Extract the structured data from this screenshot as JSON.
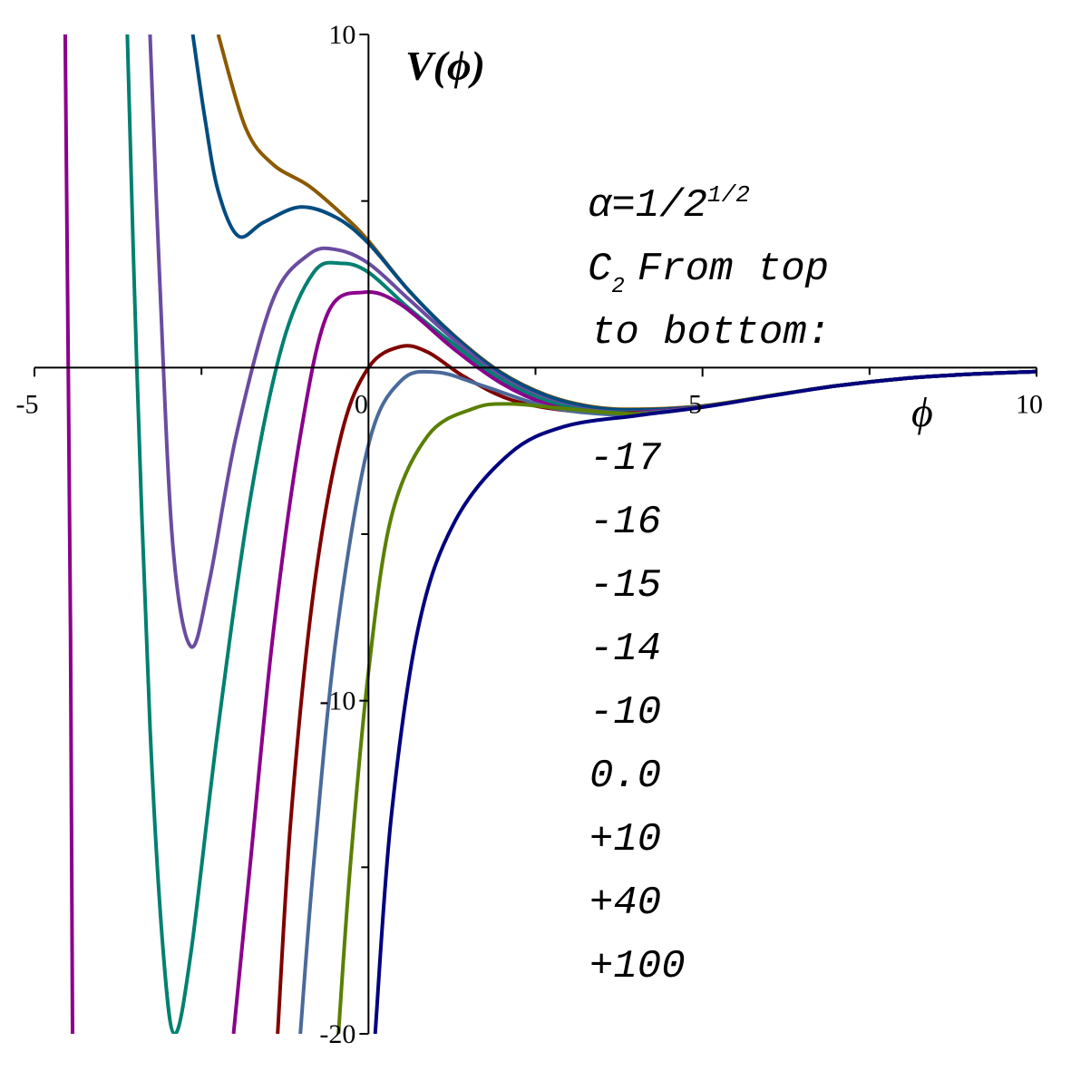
{
  "chart_data": {
    "type": "line",
    "x_label": "ϕ",
    "y_label": "V(ϕ)",
    "annotation": {
      "alpha": "α=1/2",
      "alpha_sup": "1/2",
      "c": "C",
      "c_sub": "2",
      "line2": "From top",
      "line3": "to bottom:"
    },
    "xlim": [
      -5,
      10
    ],
    "ylim": [
      -20,
      10
    ],
    "xticks": [
      -5,
      0,
      5,
      10
    ],
    "yticks": [
      -20,
      -10,
      10
    ],
    "xminorticks": [
      -2.5,
      2.5,
      7.5
    ],
    "yminorticks": [
      -15,
      -5,
      5
    ],
    "series": [
      {
        "name": "-17",
        "color": "#8B5A00",
        "x": [
          -2.25,
          -1.84,
          -1.43,
          -0.89,
          -0.34,
          0,
          0.61,
          1.29,
          1.98,
          2.66,
          3.34,
          4.02,
          5,
          6,
          7,
          8,
          9,
          10
        ],
        "values": [
          10,
          7.2,
          6.1,
          5.45,
          4.5,
          3.8,
          2.3,
          0.95,
          -0.14,
          -0.82,
          -1.17,
          -1.25,
          -1.15,
          -0.85,
          -0.55,
          -0.33,
          -0.2,
          -0.12
        ]
      },
      {
        "name": "-16",
        "color": "#004C80",
        "x": [
          -2.63,
          -2.45,
          -2.25,
          -1.95,
          -1.57,
          -1.02,
          -0.48,
          0,
          0.61,
          1.29,
          1.98,
          2.66,
          3.34,
          4.02,
          5,
          6,
          7,
          8,
          9,
          10
        ],
        "values": [
          10,
          7.5,
          5.3,
          3.95,
          4.36,
          4.82,
          4.5,
          3.73,
          2.3,
          0.93,
          -0.16,
          -0.84,
          -1.19,
          -1.27,
          -1.16,
          -0.85,
          -0.55,
          -0.33,
          -0.2,
          -0.12
        ]
      },
      {
        "name": "-15",
        "color": "#6A4CA0",
        "x": [
          -3.27,
          -3.13,
          -2.93,
          -2.66,
          -2.38,
          -1.98,
          -1.43,
          -0.89,
          -0.48,
          0,
          0.61,
          1.29,
          1.98,
          2.66,
          3.34,
          4.02,
          5,
          6,
          7,
          8,
          9,
          10
        ],
        "values": [
          10,
          2.86,
          -5.3,
          -8.37,
          -6.4,
          -2.04,
          2.04,
          3.4,
          3.54,
          3.13,
          2.04,
          0.82,
          -0.27,
          -0.95,
          -1.28,
          -1.33,
          -1.17,
          -0.85,
          -0.55,
          -0.33,
          -0.2,
          -0.12
        ]
      },
      {
        "name": "-14",
        "color": "#008070",
        "x": [
          -3.61,
          -3.47,
          -3.27,
          -3.07,
          -2.9,
          -2.66,
          -2.25,
          -1.77,
          -1.29,
          -0.82,
          -0.41,
          0,
          0.61,
          1.29,
          1.98,
          2.66,
          3.34,
          4.02,
          5,
          6,
          7,
          8,
          9,
          10
        ],
        "values": [
          10,
          0.14,
          -10.8,
          -17.6,
          -20,
          -17.6,
          -10.8,
          -3.95,
          0.68,
          2.86,
          3.13,
          2.86,
          1.77,
          0.68,
          -0.35,
          -1.0,
          -1.31,
          -1.34,
          -1.17,
          -0.85,
          -0.55,
          -0.33,
          -0.2,
          -0.12
        ]
      },
      {
        "name": "-10",
        "color": "#8B008B",
        "x": [
          -4.54,
          -4.46,
          -4.43,
          null,
          -2.02,
          -1.77,
          -1.43,
          -1.02,
          -0.61,
          -0.07,
          0.48,
          1.29,
          1.98,
          2.66,
          3.34,
          4.02,
          5,
          6,
          7,
          8,
          9,
          10
        ],
        "values": [
          10,
          -8.04,
          -20,
          null,
          -20,
          -14.9,
          -8.04,
          -2.04,
          1.63,
          2.26,
          1.9,
          0.54,
          -0.46,
          -1.09,
          -1.36,
          -1.35,
          -1.17,
          -0.85,
          -0.55,
          -0.33,
          -0.2,
          -0.12
        ]
      },
      {
        "name": "0.0",
        "color": "#800000",
        "x": [
          -1.36,
          -1.16,
          -0.82,
          -0.41,
          0,
          0.48,
          0.89,
          1.43,
          2.11,
          2.93,
          4.02,
          5,
          6,
          7,
          8,
          9,
          10
        ],
        "values": [
          -20,
          -13.5,
          -6.68,
          -2.04,
          0,
          0.63,
          0.46,
          -0.27,
          -0.95,
          -1.28,
          -1.37,
          -1.18,
          -0.85,
          -0.55,
          -0.33,
          -0.2,
          -0.12
        ]
      },
      {
        "name": "+10",
        "color": "#4A6A9A",
        "x": [
          -1.02,
          -0.82,
          -0.48,
          0,
          0.48,
          1.02,
          1.7,
          2.66,
          3.47,
          4.02,
          5,
          6,
          7,
          8,
          9,
          10
        ],
        "values": [
          -20,
          -14.9,
          -8.04,
          -2.32,
          -0.41,
          -0.14,
          -0.54,
          -1.17,
          -1.39,
          -1.38,
          -1.18,
          -0.85,
          -0.55,
          -0.33,
          -0.2,
          -0.12
        ]
      },
      {
        "name": "+40",
        "color": "#5A8000",
        "x": [
          -0.45,
          -0.27,
          0,
          0.34,
          0.89,
          1.57,
          2.11,
          2.93,
          4.02,
          5,
          6,
          7,
          8,
          9,
          10
        ],
        "values": [
          -20,
          -14.9,
          -9.13,
          -4.5,
          -2.04,
          -1.23,
          -1.09,
          -1.23,
          -1.39,
          -1.18,
          -0.85,
          -0.55,
          -0.33,
          -0.2,
          -0.12
        ]
      },
      {
        "name": "+100",
        "color": "#00007F",
        "x": [
          0.1,
          0.34,
          0.75,
          1.29,
          2.11,
          2.93,
          4.02,
          5,
          6,
          7,
          8,
          9,
          10
        ],
        "values": [
          -20,
          -13.5,
          -7.77,
          -4.63,
          -2.59,
          -1.77,
          -1.44,
          -1.19,
          -0.86,
          -0.55,
          -0.33,
          -0.2,
          -0.12
        ]
      }
    ]
  }
}
